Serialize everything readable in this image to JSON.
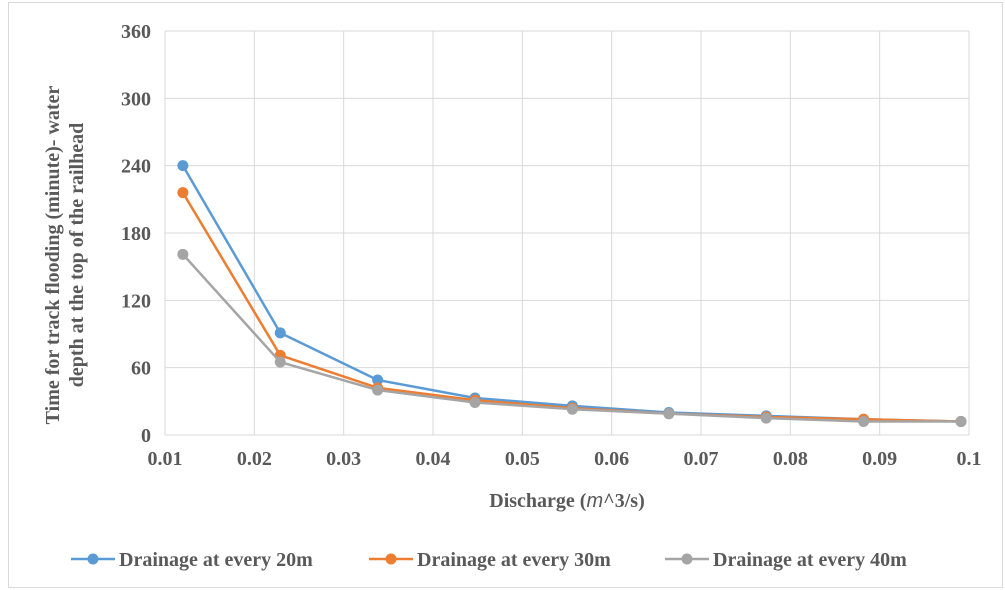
{
  "chart_data": {
    "type": "line",
    "title": "",
    "xlabel_prefix": "Discharge (",
    "xlabel_unit": "m",
    "xlabel_suffix": "^3/s)",
    "ylabel_line1": "Time for track flooding (minute)- water",
    "ylabel_line2": "depth at the top of the railhead",
    "xlim": [
      0.01,
      0.1
    ],
    "ylim": [
      0,
      360
    ],
    "xticks": [
      "0.01",
      "0.02",
      "0.03",
      "0.04",
      "0.05",
      "0.06",
      "0.07",
      "0.08",
      "0.09",
      "0.1"
    ],
    "yticks": [
      "0",
      "60",
      "120",
      "180",
      "240",
      "300",
      "360"
    ],
    "grid": true,
    "legend_position": "bottom",
    "x": [
      0.012,
      0.0229,
      0.0338,
      0.0447,
      0.0556,
      0.0664,
      0.0773,
      0.0882,
      0.0991
    ],
    "series": [
      {
        "name": "Drainage at every 20m",
        "color": "#5b9bd5",
        "values": [
          240,
          91,
          49,
          33,
          26,
          20,
          17,
          14,
          12
        ]
      },
      {
        "name": "Drainage at every 30m",
        "color": "#ed7d31",
        "values": [
          216,
          71,
          42,
          31,
          24,
          19,
          16,
          14,
          12
        ]
      },
      {
        "name": "Drainage at every 40m",
        "color": "#a5a5a5",
        "values": [
          161,
          65,
          40,
          29,
          23,
          19,
          15,
          12,
          12
        ]
      }
    ]
  }
}
